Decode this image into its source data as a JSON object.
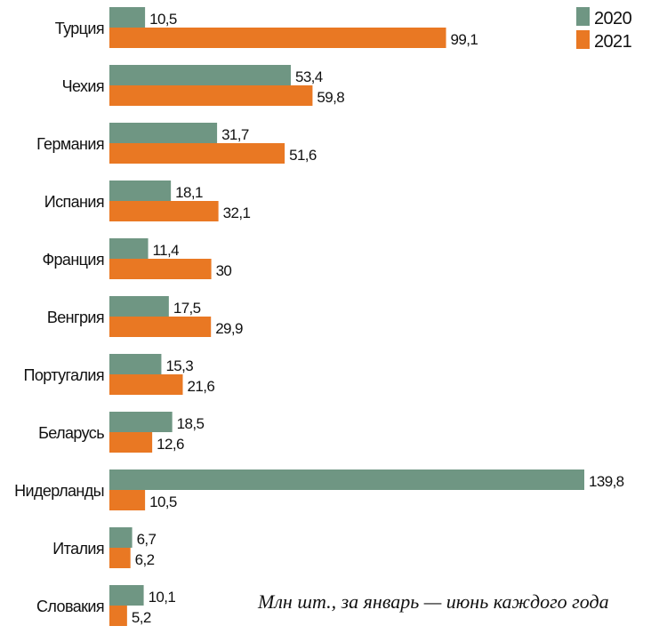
{
  "chart_data": {
    "type": "bar",
    "orientation": "horizontal",
    "categories": [
      "Турция",
      "Чехия",
      "Германия",
      "Испания",
      "Франция",
      "Венгрия",
      "Португалия",
      "Беларусь",
      "Нидерланды",
      "Италия",
      "Словакия"
    ],
    "series": [
      {
        "name": "2020",
        "color": "#6f9683",
        "values": [
          10.5,
          53.4,
          31.7,
          18.1,
          11.4,
          17.5,
          15.3,
          18.5,
          139.8,
          6.7,
          10.1
        ],
        "labels": [
          "10,5",
          "53,4",
          "31,7",
          "18,1",
          "11,4",
          "17,5",
          "15,3",
          "18,5",
          "139,8",
          "6,7",
          "10,1"
        ]
      },
      {
        "name": "2021",
        "color": "#e97823",
        "values": [
          99.1,
          59.8,
          51.6,
          32.1,
          30,
          29.9,
          21.6,
          12.6,
          10.5,
          6.2,
          5.2
        ],
        "labels": [
          "99,1",
          "59,8",
          "51,6",
          "32,1",
          "30",
          "29,9",
          "21,6",
          "12,6",
          "10,5",
          "6,2",
          "5,2"
        ]
      }
    ],
    "note": "Млн шт., за январь — июнь каждого года",
    "legend_position": "top-right",
    "grid": false,
    "xlim": [
      0,
      140
    ]
  }
}
